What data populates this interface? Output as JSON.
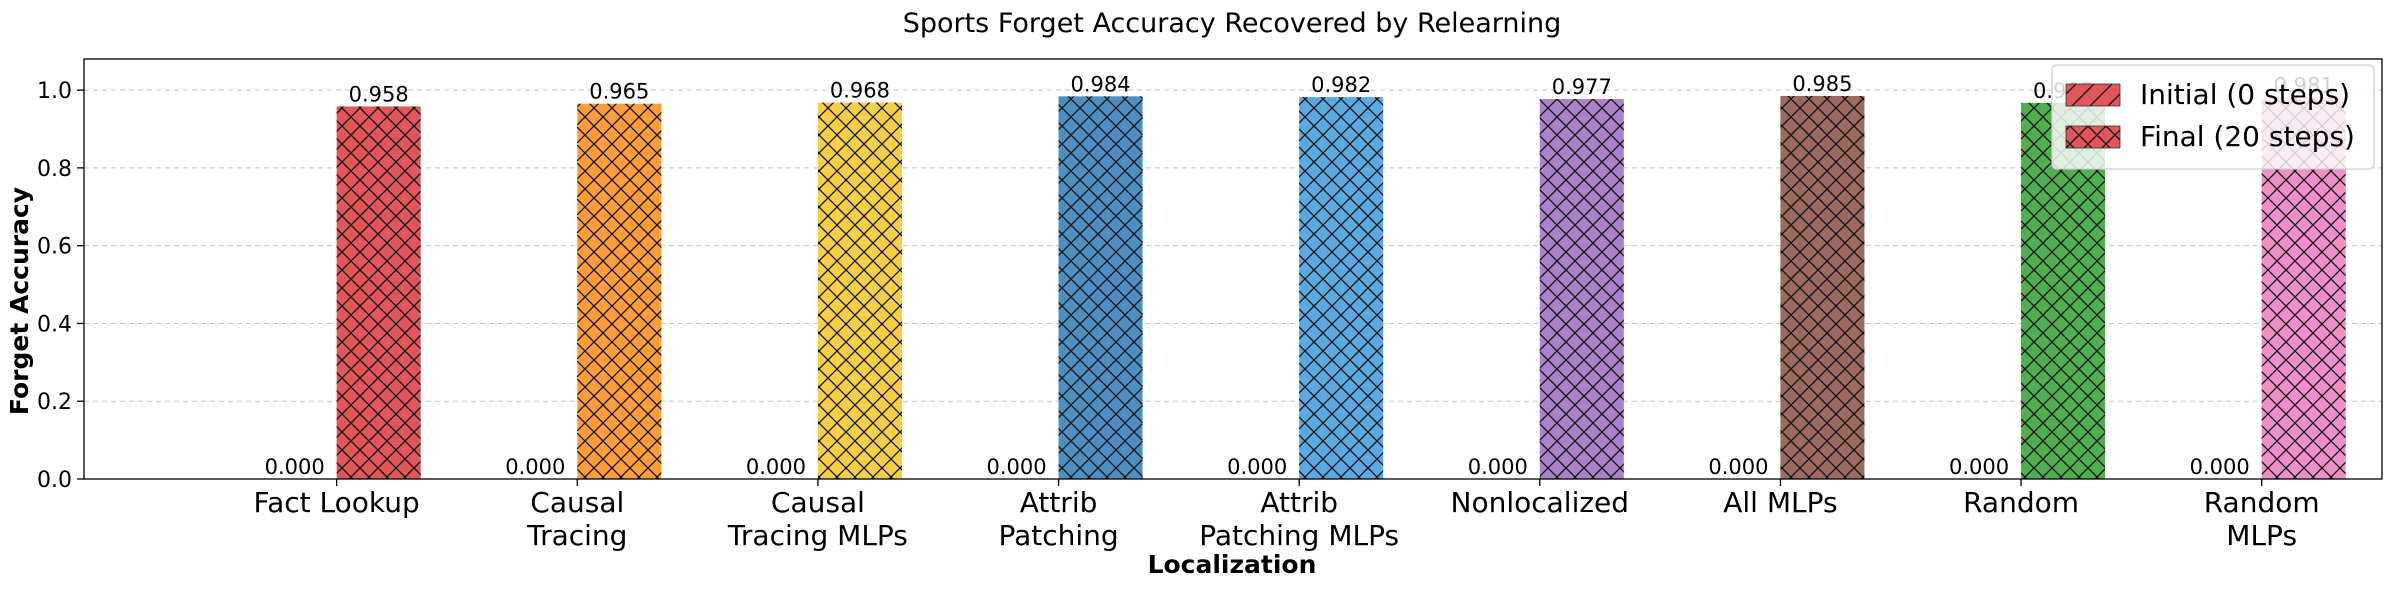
{
  "chart_data": {
    "type": "bar",
    "title": "Sports Forget Accuracy Recovered by Relearning",
    "xlabel": "Localization",
    "ylabel": "Forget Accuracy",
    "ylim": [
      0,
      1.08
    ],
    "yticks": [
      "0.0",
      "0.2",
      "0.4",
      "0.6",
      "0.8",
      "1.0"
    ],
    "grid": "y-dashed",
    "legend_position": "top-right",
    "categories": [
      [
        "Fact Lookup"
      ],
      [
        "Causal",
        "Tracing"
      ],
      [
        "Causal",
        "Tracing MLPs"
      ],
      [
        "Attrib",
        "Patching"
      ],
      [
        "Attrib",
        "Patching MLPs"
      ],
      [
        "Nonlocalized"
      ],
      [
        "All MLPs"
      ],
      [
        "Random"
      ],
      [
        "Random",
        "MLPs"
      ]
    ],
    "colors": [
      "#e15759",
      "#ff9d3a",
      "#f6cf47",
      "#4e8fc2",
      "#5aa9e3",
      "#a982c9",
      "#9c6b60",
      "#4fae4f",
      "#ef8fc8"
    ],
    "series": [
      {
        "name": "Initial (0 steps)",
        "hatch": "diagonal",
        "values": [
          0.0,
          0.0,
          0.0,
          0.0,
          0.0,
          0.0,
          0.0,
          0.0,
          0.0
        ],
        "labels": [
          "0.000",
          "0.000",
          "0.000",
          "0.000",
          "0.000",
          "0.000",
          "0.000",
          "0.000",
          "0.000"
        ]
      },
      {
        "name": "Final (20 steps)",
        "hatch": "cross",
        "values": [
          0.958,
          0.965,
          0.968,
          0.984,
          0.982,
          0.977,
          0.985,
          0.967,
          0.981
        ],
        "labels": [
          "0.958",
          "0.965",
          "0.968",
          "0.984",
          "0.982",
          "0.977",
          "0.985",
          "0.967",
          "0.981"
        ]
      }
    ]
  }
}
